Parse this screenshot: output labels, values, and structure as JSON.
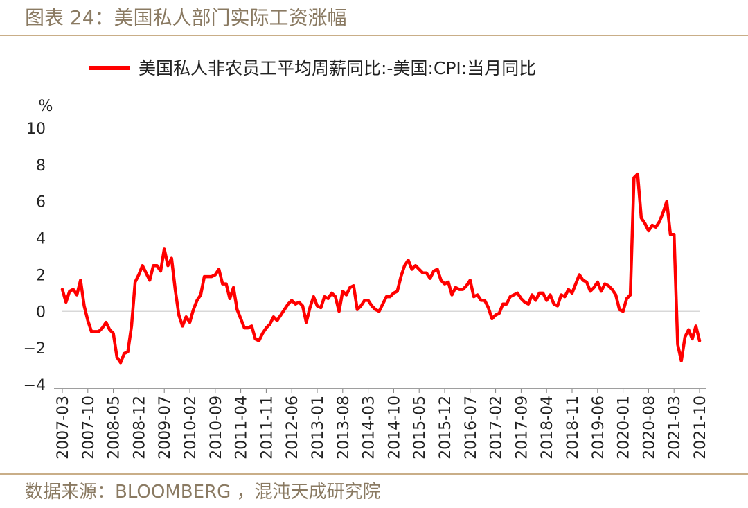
{
  "figure_title": "图表 24：美国私人部门实际工资涨幅",
  "source_note": "数据来源：BLOOMBERG ，混沌天成研究院",
  "colors": {
    "series": "#ff0000",
    "accent_rule": "#c9ae88",
    "caption": "#8a7a62"
  },
  "chart_data": {
    "type": "line",
    "title": "",
    "ylabel": "%",
    "xlabel": "",
    "ylim": [
      -4,
      10
    ],
    "yticks": [
      10,
      8,
      6,
      4,
      2,
      0,
      -2,
      -4
    ],
    "ytick_labels": [
      "10",
      "8",
      "6",
      "4",
      "2",
      "0",
      "−2",
      "−4"
    ],
    "grid": false,
    "legend_position": "top",
    "x_tick_labels": [
      "2007-03",
      "2007-10",
      "2008-05",
      "2008-12",
      "2009-07",
      "2010-02",
      "2010-09",
      "2011-04",
      "2011-11",
      "2012-06",
      "2013-01",
      "2013-08",
      "2014-03",
      "2014-10",
      "2015-05",
      "2015-12",
      "2016-07",
      "2017-02",
      "2017-09",
      "2018-04",
      "2018-11",
      "2019-06",
      "2020-01",
      "2020-08",
      "2021-03",
      "2021-10"
    ],
    "x_start": "2007-03",
    "x_end": "2021-10",
    "series": [
      {
        "name": "美国私人非农员工平均周薪同比:-美国:CPI:当月同比",
        "color": "#ff0000",
        "values": [
          1.2,
          0.5,
          1.1,
          1.2,
          0.9,
          1.7,
          0.3,
          -0.5,
          -1.1,
          -1.1,
          -1.1,
          -0.9,
          -0.6,
          -1.0,
          -1.2,
          -2.5,
          -2.8,
          -2.3,
          -2.2,
          -0.8,
          1.6,
          2.0,
          2.5,
          2.1,
          1.7,
          2.5,
          2.5,
          2.2,
          3.4,
          2.5,
          2.9,
          1.2,
          -0.2,
          -0.8,
          -0.3,
          -0.6,
          0.1,
          0.6,
          0.9,
          1.9,
          1.9,
          1.9,
          2.0,
          2.3,
          1.5,
          1.5,
          0.7,
          1.3,
          0.1,
          -0.4,
          -0.9,
          -0.9,
          -0.8,
          -1.5,
          -1.6,
          -1.2,
          -0.9,
          -0.7,
          -0.3,
          -0.5,
          -0.2,
          0.1,
          0.4,
          0.6,
          0.4,
          0.5,
          0.3,
          -0.6,
          0.2,
          0.8,
          0.3,
          0.2,
          0.8,
          0.7,
          1.0,
          0.8,
          0.0,
          1.1,
          0.9,
          1.3,
          1.4,
          0.1,
          0.3,
          0.6,
          0.6,
          0.3,
          0.1,
          0.0,
          0.4,
          0.8,
          0.8,
          1.0,
          1.1,
          1.9,
          2.5,
          2.8,
          2.3,
          2.5,
          2.3,
          2.1,
          2.1,
          1.8,
          2.2,
          2.3,
          1.7,
          1.5,
          1.6,
          0.9,
          1.3,
          1.2,
          1.2,
          1.4,
          1.7,
          0.8,
          0.9,
          0.6,
          0.6,
          0.2,
          -0.4,
          -0.2,
          -0.1,
          0.4,
          0.4,
          0.8,
          0.9,
          1.0,
          0.7,
          0.5,
          0.4,
          0.9,
          0.6,
          1.0,
          1.0,
          0.6,
          0.9,
          0.4,
          0.3,
          0.9,
          0.8,
          1.2,
          1.0,
          1.5,
          2.0,
          1.7,
          1.6,
          1.1,
          1.3,
          1.6,
          1.1,
          1.5,
          1.4,
          1.2,
          0.9,
          0.1,
          0.0,
          0.7,
          0.9,
          7.3,
          7.5,
          5.1,
          4.8,
          4.4,
          4.7,
          4.6,
          4.9,
          5.4,
          6.0,
          4.2,
          4.2,
          -1.8,
          -2.7,
          -1.4,
          -1.0,
          -1.5,
          -0.8,
          -1.6
        ]
      }
    ]
  }
}
